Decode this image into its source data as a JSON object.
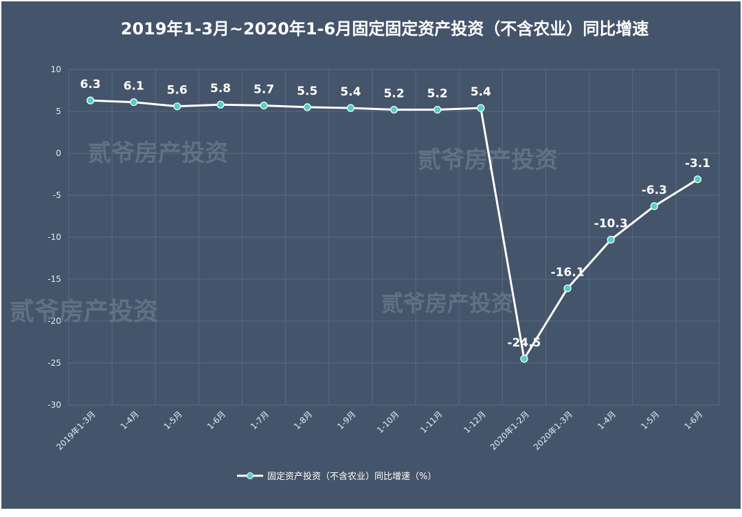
{
  "chart_data": {
    "type": "line",
    "title": "2019年1-3月~2020年1-6月固定固定资产投资（不含农业）同比增速",
    "xlabel": "",
    "ylabel": "",
    "ylim": [
      -30,
      10
    ],
    "yticks": [
      10,
      5,
      0,
      -5,
      -10,
      -15,
      -20,
      -25,
      -30
    ],
    "grid": true,
    "legend_position": "bottom",
    "categories": [
      "2019年1-3月",
      "1-4月",
      "1-5月",
      "1-6月",
      "1-7月",
      "1-8月",
      "1-9月",
      "1-10月",
      "1-11月",
      "1-12月",
      "2020年1-2月",
      "2020年1-3月",
      "1-4月",
      "1-5月",
      "1-6月"
    ],
    "series": [
      {
        "name": "固定资产投资（不含农业）同比增速（%）",
        "values": [
          6.3,
          6.1,
          5.6,
          5.8,
          5.7,
          5.5,
          5.4,
          5.2,
          5.2,
          5.4,
          -24.5,
          -16.1,
          -10.3,
          -6.3,
          -3.1
        ],
        "data_labels": [
          "6.3",
          "6.1",
          "5.6",
          "5.8",
          "5.7",
          "5.5",
          "5.4",
          "5.2",
          "5.2",
          "5.4",
          "-24.5",
          "-16.1",
          "-10.3",
          "-6.3",
          "-3.1"
        ]
      }
    ],
    "colors": {
      "background": "#44546a",
      "line": "#ffffff",
      "marker": "#4fd1c5",
      "grid": "#5a6a80"
    }
  },
  "watermarks": [
    "贰爷房产投资",
    "贰爷房产投资",
    "贰爷房产投资",
    "贰爷房产投资"
  ]
}
